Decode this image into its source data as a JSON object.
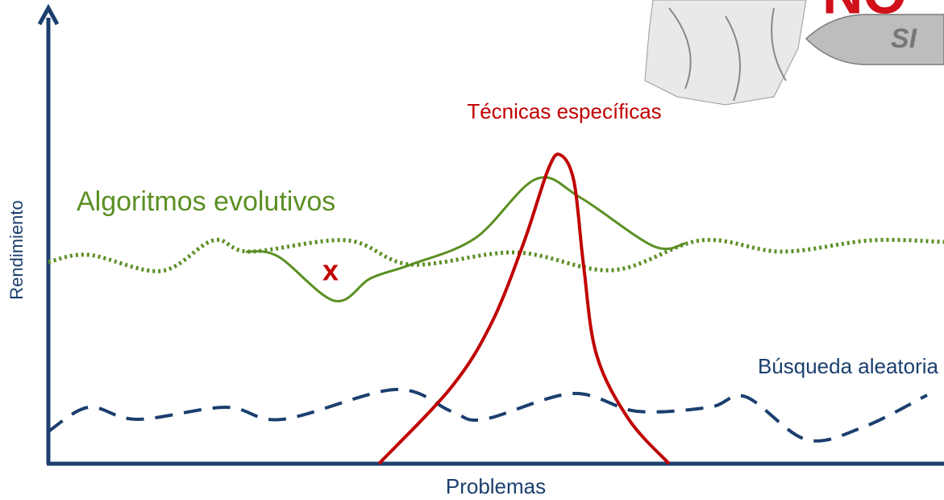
{
  "axes": {
    "y": "Rendimiento",
    "x": "Problemas"
  },
  "curves": {
    "specific": "Técnicas específicas",
    "evolutionary": "Algoritmos evolutivos",
    "random": "Búsqueda aleatoria"
  },
  "marker": "x",
  "logo": {
    "no": "NO",
    "si": "SI"
  }
}
